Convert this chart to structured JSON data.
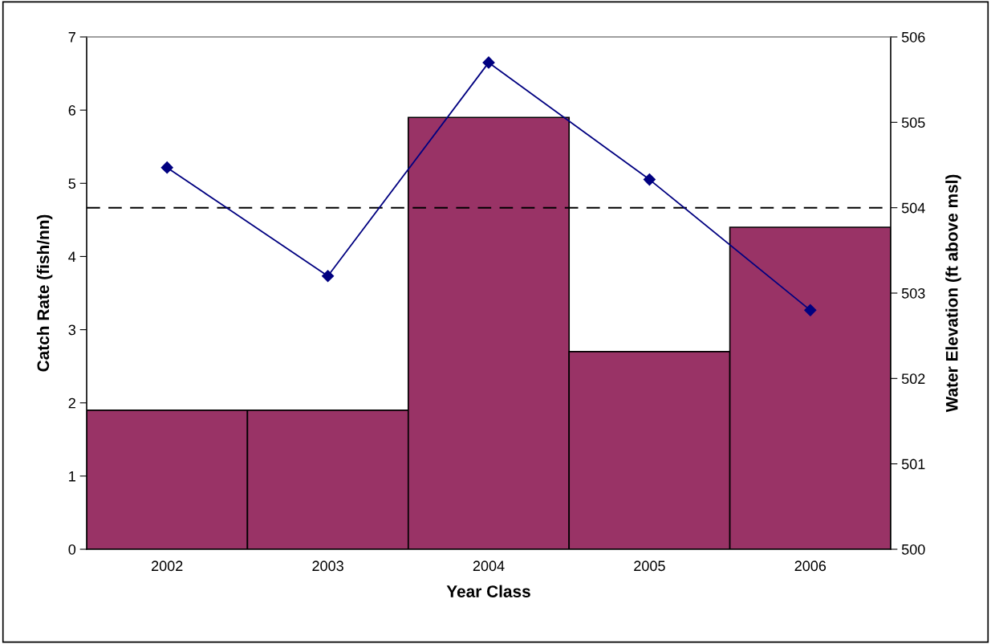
{
  "chart_data": {
    "type": "bar",
    "xlabel": "Year Class",
    "ylabel": "Catch Rate (fish/nn)",
    "y2label": "Water Elevation (ft above msl)",
    "categories": [
      "2002",
      "2003",
      "2004",
      "2005",
      "2006"
    ],
    "series": [
      {
        "color": "#993366",
        "values": [
          1.9,
          1.9,
          5.9,
          2.7,
          4.4
        ]
      },
      {
        "type": "line",
        "axis": "y2",
        "color": "#000080",
        "marker": "diamond",
        "values": [
          504.47,
          503.2,
          505.7,
          504.33,
          502.8
        ]
      }
    ],
    "ylim": [
      0,
      7
    ],
    "yticks": [
      0,
      1,
      2,
      3,
      4,
      5,
      6,
      7
    ],
    "y2lim": [
      500,
      506
    ],
    "y2ticks": [
      500,
      501,
      502,
      503,
      504,
      505,
      506
    ],
    "ref_lines": [
      {
        "axis": "y2",
        "value": 504,
        "color": "#000000",
        "line_style": "dashed"
      }
    ],
    "grid": false
  }
}
